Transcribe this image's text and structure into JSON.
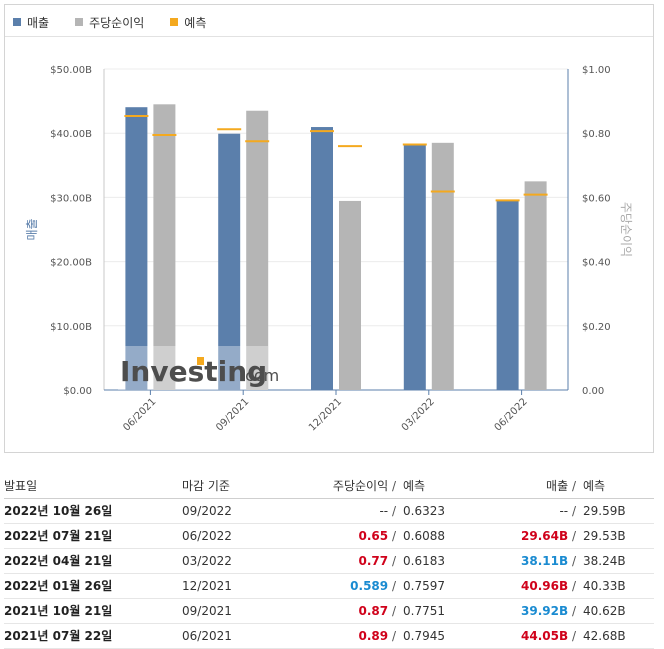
{
  "legend": {
    "items": [
      {
        "label": "매출",
        "color": "#5b7fab"
      },
      {
        "label": "주당순이익",
        "color": "#b5b5b5"
      },
      {
        "label": "예측",
        "color": "#f4a91f"
      }
    ]
  },
  "watermark": {
    "brand": "Investing",
    "suffix": ".com"
  },
  "chart_data": {
    "type": "bar",
    "categories": [
      "06/2021",
      "09/2021",
      "12/2021",
      "03/2022",
      "06/2022"
    ],
    "y_left": {
      "label": "매출",
      "min": 0,
      "max": 50,
      "ticks": [
        "$0.00",
        "$10.00B",
        "$20.00B",
        "$30.00B",
        "$40.00B",
        "$50.00B"
      ]
    },
    "y_right": {
      "label": "주당순이익",
      "min": 0,
      "max": 1,
      "ticks": [
        "0.00",
        "$0.20",
        "$0.40",
        "$0.60",
        "$0.80",
        "$1.00"
      ]
    },
    "series": [
      {
        "name": "매출",
        "axis": "left",
        "color": "#5b7fab",
        "values": [
          44.05,
          39.92,
          40.96,
          38.11,
          29.64
        ],
        "forecast": [
          42.68,
          40.62,
          40.33,
          38.24,
          29.53
        ]
      },
      {
        "name": "주당순이익",
        "axis": "right",
        "color": "#b5b5b5",
        "values": [
          0.89,
          0.87,
          0.589,
          0.77,
          0.65
        ],
        "forecast": [
          0.7945,
          0.7751,
          0.7597,
          0.6183,
          0.6088
        ]
      }
    ],
    "forecast_color": "#f4a91f"
  },
  "table": {
    "headers": {
      "date": "발표일",
      "period": "마감 기준",
      "eps": "주당순이익",
      "eps_forecast": "예측",
      "revenue": "매출",
      "revenue_forecast": "예측",
      "sep": "/"
    },
    "rows": [
      {
        "date": "2022년 10월 26일",
        "period": "09/2022",
        "eps": "--",
        "eps_class": "neutral",
        "eps_forecast": "0.6323",
        "revenue": "--",
        "revenue_class": "neutral",
        "revenue_forecast": "29.59B"
      },
      {
        "date": "2022년 07월 21일",
        "period": "06/2022",
        "eps": "0.65",
        "eps_class": "up",
        "eps_forecast": "0.6088",
        "revenue": "29.64B",
        "revenue_class": "up",
        "revenue_forecast": "29.53B"
      },
      {
        "date": "2022년 04월 21일",
        "period": "03/2022",
        "eps": "0.77",
        "eps_class": "up",
        "eps_forecast": "0.6183",
        "revenue": "38.11B",
        "revenue_class": "down",
        "revenue_forecast": "38.24B"
      },
      {
        "date": "2022년 01월 26일",
        "period": "12/2021",
        "eps": "0.589",
        "eps_class": "down",
        "eps_forecast": "0.7597",
        "revenue": "40.96B",
        "revenue_class": "up",
        "revenue_forecast": "40.33B"
      },
      {
        "date": "2021년 10월 21일",
        "period": "09/2021",
        "eps": "0.87",
        "eps_class": "up",
        "eps_forecast": "0.7751",
        "revenue": "39.92B",
        "revenue_class": "down",
        "revenue_forecast": "40.62B"
      },
      {
        "date": "2021년 07월 22일",
        "period": "06/2021",
        "eps": "0.89",
        "eps_class": "up",
        "eps_forecast": "0.7945",
        "revenue": "44.05B",
        "revenue_class": "up",
        "revenue_forecast": "42.68B"
      }
    ]
  }
}
